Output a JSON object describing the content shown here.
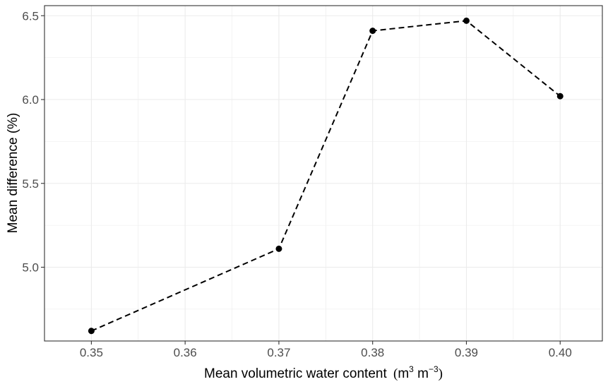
{
  "chart_data": {
    "type": "line",
    "x": [
      0.35,
      0.37,
      0.38,
      0.39,
      0.4
    ],
    "series": [
      {
        "values": [
          4.62,
          5.11,
          6.41,
          6.47,
          6.02
        ]
      }
    ],
    "xlabel": "Mean volumetric water content",
    "xlabel_unit": {
      "open": "(",
      "m": "m",
      "exp1": "3",
      "m2": " m",
      "exp2": "−3",
      "close": ")"
    },
    "ylabel": "Mean difference (%)",
    "xlim": [
      0.345,
      0.4045
    ],
    "ylim": [
      4.56,
      6.56
    ],
    "x_ticks": [
      0.35,
      0.36,
      0.37,
      0.38,
      0.39,
      0.4
    ],
    "x_tick_labels": [
      "0.35",
      "0.36",
      "0.37",
      "0.38",
      "0.39",
      "0.40"
    ],
    "y_ticks": [
      5.0,
      5.5,
      6.0,
      6.5
    ],
    "y_tick_labels": [
      "5.0",
      "5.5",
      "6.0",
      "6.5"
    ],
    "x_minor_ticks": [
      0.355,
      0.365,
      0.375,
      0.385,
      0.395
    ],
    "y_minor_ticks": [
      4.75,
      5.25,
      5.75,
      6.25
    ],
    "grid": true,
    "line_style": "dashed",
    "colors": {
      "line": "#000000",
      "point": "#000000",
      "grid": "#ebebeb",
      "panel_border": "#333333"
    }
  }
}
